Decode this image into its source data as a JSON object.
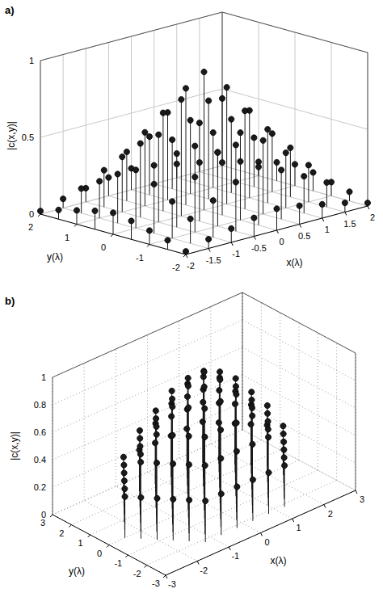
{
  "chart_data": [
    {
      "type": "stem",
      "title": "a)",
      "xlabel": "x(λ)",
      "ylabel": "y(λ)",
      "zlabel": "|c(x,y)|",
      "color": "#1a1a1a",
      "marker": "circle",
      "grid": true,
      "xlim": [
        -2,
        2
      ],
      "xticks": [
        -2,
        -1.5,
        -1,
        -0.5,
        0,
        0.5,
        1,
        1.5,
        2
      ],
      "ylim": [
        -2,
        2
      ],
      "yticks": [
        -2,
        -1,
        0,
        1,
        2
      ],
      "zlim": [
        0,
        1
      ],
      "zticks": [
        0,
        0.5,
        1
      ],
      "x": [
        -2,
        -1.5,
        -1,
        -0.5,
        0,
        0.5,
        1,
        1.5,
        2,
        -2,
        -1.5,
        -1,
        -0.5,
        0,
        0.5,
        1,
        1.5,
        2,
        -2,
        -1.5,
        -1,
        -0.5,
        0,
        0.5,
        1,
        1.5,
        2,
        -2,
        -1.5,
        -1,
        -0.5,
        0,
        0.5,
        1,
        1.5,
        2,
        -2,
        -1.5,
        -1,
        -0.5,
        0,
        0.5,
        1,
        1.5,
        2,
        -2,
        -1.5,
        -1,
        -0.5,
        0,
        0.5,
        1,
        1.5,
        2,
        -2,
        -1.5,
        -1,
        -0.5,
        0,
        0.5,
        1,
        1.5,
        2,
        -2,
        -1.5,
        -1,
        -0.5,
        0,
        0.5,
        1,
        1.5,
        2,
        -2,
        -1.5,
        -1,
        -0.5,
        0,
        0.5,
        1,
        1.5,
        2
      ],
      "y": [
        -2,
        -2,
        -2,
        -2,
        -2,
        -2,
        -2,
        -2,
        -2,
        -1.5,
        -1.5,
        -1.5,
        -1.5,
        -1.5,
        -1.5,
        -1.5,
        -1.5,
        -1.5,
        -1,
        -1,
        -1,
        -1,
        -1,
        -1,
        -1,
        -1,
        -1,
        -0.5,
        -0.5,
        -0.5,
        -0.5,
        -0.5,
        -0.5,
        -0.5,
        -0.5,
        -0.5,
        0,
        0,
        0,
        0,
        0,
        0,
        0,
        0,
        0,
        0.5,
        0.5,
        0.5,
        0.5,
        0.5,
        0.5,
        0.5,
        0.5,
        0.5,
        1,
        1,
        1,
        1,
        1,
        1,
        1,
        1,
        1,
        1.5,
        1.5,
        1.5,
        1.5,
        1.5,
        1.5,
        1.5,
        1.5,
        1.5,
        2,
        2,
        2,
        2,
        2,
        2,
        2,
        2,
        2
      ],
      "values": [
        0.02,
        0.06,
        0.09,
        0.12,
        0.14,
        0.12,
        0.09,
        0.06,
        0.02,
        0.06,
        0.16,
        0.24,
        0.32,
        0.38,
        0.32,
        0.24,
        0.16,
        0.06,
        0.09,
        0.24,
        0.36,
        0.48,
        0.57,
        0.48,
        0.36,
        0.24,
        0.09,
        0.12,
        0.32,
        0.48,
        0.64,
        0.76,
        0.64,
        0.48,
        0.32,
        0.12,
        0.14,
        0.38,
        0.57,
        0.76,
        0.9,
        0.76,
        0.57,
        0.38,
        0.14,
        0.12,
        0.32,
        0.48,
        0.64,
        0.76,
        0.64,
        0.48,
        0.32,
        0.12,
        0.09,
        0.24,
        0.36,
        0.48,
        0.57,
        0.48,
        0.36,
        0.24,
        0.09,
        0.06,
        0.16,
        0.24,
        0.32,
        0.38,
        0.32,
        0.24,
        0.16,
        0.06,
        0.02,
        0.06,
        0.09,
        0.12,
        0.14,
        0.12,
        0.09,
        0.06,
        0.02
      ]
    },
    {
      "type": "stem",
      "title": "b)",
      "xlabel": "x(λ)",
      "ylabel": "y(λ)",
      "zlabel": "|c(x,y)|",
      "color": "#1a1a1a",
      "marker": "circle",
      "grid": true,
      "xlim": [
        -3,
        3
      ],
      "xticks": [
        -3,
        -2,
        -1,
        0,
        1,
        2,
        3
      ],
      "ylim": [
        -3,
        3
      ],
      "yticks": [
        -3,
        -2,
        -1,
        0,
        1,
        2,
        3
      ],
      "zlim": [
        0,
        1
      ],
      "zticks": [
        0,
        0.2,
        0.4,
        0.6,
        0.8,
        1
      ],
      "x": [
        -1.25,
        -0.75,
        -0.25,
        0.25,
        0.75,
        1.25,
        -1.5,
        -1,
        -0.5,
        0,
        0.5,
        1,
        1.5,
        -1.75,
        -1.25,
        -0.75,
        -0.25,
        0.25,
        0.75,
        1.25,
        1.75,
        -2,
        -1.5,
        -1,
        -0.5,
        0,
        0.5,
        1,
        1.5,
        2,
        -2.25,
        -1.75,
        -1.25,
        -0.75,
        -0.25,
        0.25,
        0.75,
        1.25,
        1.75,
        2.25,
        -2.5,
        -2,
        -1.5,
        -1,
        -0.5,
        0,
        0.5,
        1,
        1.5,
        2,
        2.5,
        -2.25,
        -1.75,
        -1.25,
        -0.75,
        -0.25,
        0.25,
        0.75,
        1.25,
        1.75,
        2.25,
        -2,
        -1.5,
        -1,
        -0.5,
        0,
        0.5,
        1,
        1.5,
        2,
        -1.75,
        -1.25,
        -0.75,
        -0.25,
        0.25,
        0.75,
        1.25,
        1.75,
        -1.5,
        -1,
        -0.5,
        0,
        0.5,
        1,
        1.5,
        -1.25,
        -0.75,
        -0.25,
        0.25,
        0.75,
        1.25
      ],
      "y": [
        -2.17,
        -2.17,
        -2.17,
        -2.17,
        -2.17,
        -2.17,
        -1.73,
        -1.73,
        -1.73,
        -1.73,
        -1.73,
        -1.73,
        -1.73,
        -1.3,
        -1.3,
        -1.3,
        -1.3,
        -1.3,
        -1.3,
        -1.3,
        -1.3,
        -0.87,
        -0.87,
        -0.87,
        -0.87,
        -0.87,
        -0.87,
        -0.87,
        -0.87,
        -0.87,
        -0.43,
        -0.43,
        -0.43,
        -0.43,
        -0.43,
        -0.43,
        -0.43,
        -0.43,
        -0.43,
        -0.43,
        0,
        0,
        0,
        0,
        0,
        0,
        0,
        0,
        0,
        0,
        0,
        0.43,
        0.43,
        0.43,
        0.43,
        0.43,
        0.43,
        0.43,
        0.43,
        0.43,
        0.43,
        0.87,
        0.87,
        0.87,
        0.87,
        0.87,
        0.87,
        0.87,
        0.87,
        0.87,
        1.3,
        1.3,
        1.3,
        1.3,
        1.3,
        1.3,
        1.3,
        1.3,
        1.73,
        1.73,
        1.73,
        1.73,
        1.73,
        1.73,
        1.73,
        2.17,
        2.17,
        2.17,
        2.17,
        2.17,
        2.17
      ],
      "values": [
        0.3,
        0.3,
        0.3,
        0.3,
        0.3,
        0.3,
        0.3,
        0.5,
        0.5,
        0.5,
        0.5,
        0.5,
        0.3,
        0.3,
        0.5,
        0.65,
        0.65,
        0.65,
        0.65,
        0.5,
        0.3,
        0.3,
        0.5,
        0.65,
        0.8,
        0.8,
        0.8,
        0.65,
        0.5,
        0.3,
        0.3,
        0.5,
        0.65,
        0.8,
        0.9,
        0.9,
        0.8,
        0.65,
        0.5,
        0.3,
        0.3,
        0.5,
        0.65,
        0.8,
        0.9,
        0.95,
        0.9,
        0.8,
        0.65,
        0.5,
        0.3,
        0.3,
        0.5,
        0.65,
        0.8,
        0.9,
        0.9,
        0.8,
        0.65,
        0.5,
        0.3,
        0.3,
        0.5,
        0.65,
        0.8,
        0.8,
        0.8,
        0.65,
        0.5,
        0.3,
        0.3,
        0.5,
        0.65,
        0.65,
        0.65,
        0.65,
        0.5,
        0.3,
        0.3,
        0.5,
        0.5,
        0.5,
        0.5,
        0.5,
        0.3,
        0.3,
        0.3,
        0.3,
        0.3,
        0.3,
        0.3
      ]
    }
  ]
}
